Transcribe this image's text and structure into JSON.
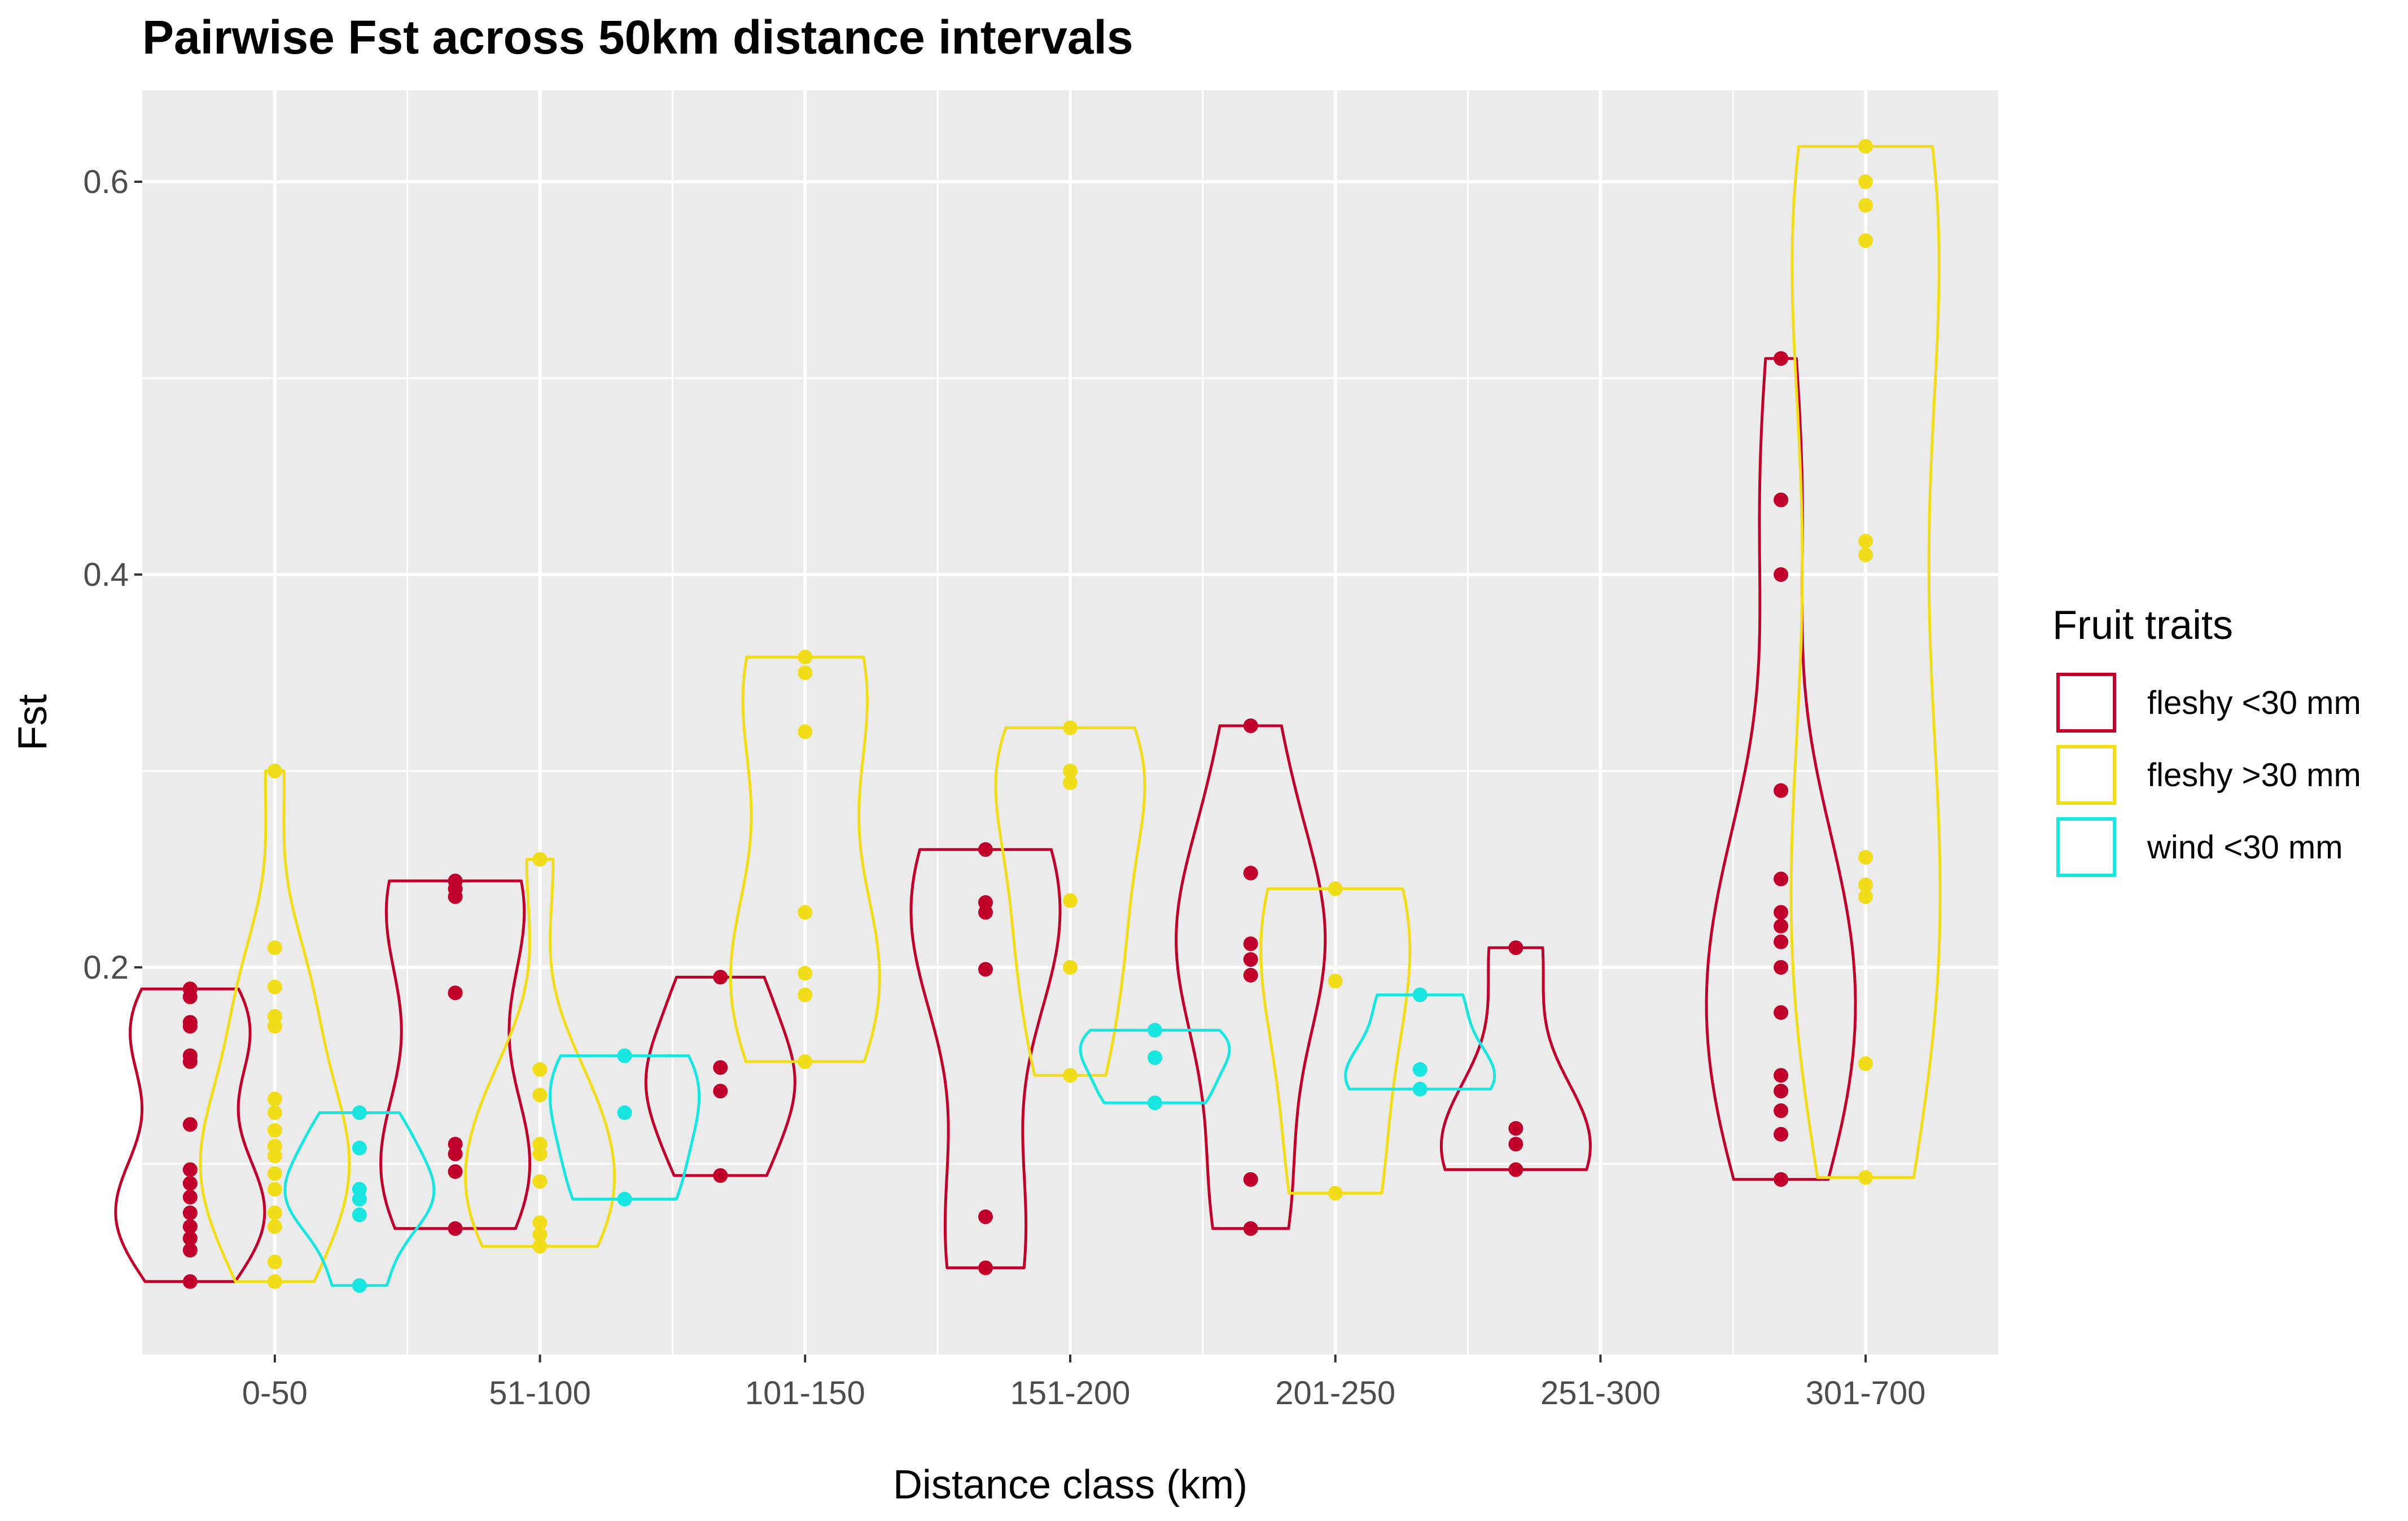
{
  "chart_data": {
    "type": "violin",
    "title": "Pairwise Fst across 50km distance intervals",
    "xlabel": "Distance class (km)",
    "ylabel": "Fst",
    "ylim": [
      0.0,
      0.64
    ],
    "yticks": [
      0.2,
      0.4,
      0.6
    ],
    "ytick_labels": [
      "0.2",
      "0.4",
      "0.6"
    ],
    "y_minor_gridlines": [
      0.1,
      0.3,
      0.5
    ],
    "categories": [
      "0-50",
      "51-100",
      "101-150",
      "151-200",
      "201-250",
      "251-300",
      "301-700"
    ],
    "grid": true,
    "legend": {
      "title": "Fruit traits",
      "position": "right",
      "entries": [
        {
          "name": "fleshy <30 mm",
          "color": "#C0002A"
        },
        {
          "name": "fleshy >30 mm",
          "color": "#F2DD1B"
        },
        {
          "name": "wind <30 mm",
          "color": "#19E6E0"
        }
      ]
    },
    "series": [
      {
        "name": "fleshy <30 mm",
        "color": "#C0002A",
        "groups": [
          {
            "category": "0-50",
            "points": [
              0.189,
              0.185,
              0.172,
              0.17,
              0.155,
              0.152,
              0.12,
              0.097,
              0.09,
              0.083,
              0.075,
              0.068,
              0.062,
              0.056,
              0.04
            ]
          },
          {
            "category": "51-100",
            "points": [
              0.244,
              0.24,
              0.236,
              0.187,
              0.11,
              0.105,
              0.096,
              0.067
            ]
          },
          {
            "category": "101-150",
            "points": [
              0.195,
              0.149,
              0.137,
              0.094
            ]
          },
          {
            "category": "151-200",
            "points": [
              0.26,
              0.233,
              0.228,
              0.199,
              0.073,
              0.047
            ]
          },
          {
            "category": "201-250",
            "points": [
              0.323,
              0.248,
              0.212,
              0.204,
              0.196,
              0.092,
              0.067
            ]
          },
          {
            "category": "251-300",
            "points": [
              0.21,
              0.118,
              0.11,
              0.097
            ]
          },
          {
            "category": "301-700",
            "points": [
              0.51,
              0.438,
              0.4,
              0.29,
              0.245,
              0.228,
              0.221,
              0.213,
              0.2,
              0.177,
              0.145,
              0.137,
              0.127,
              0.115,
              0.092
            ]
          }
        ]
      },
      {
        "name": "fleshy >30 mm",
        "color": "#F2DD1B",
        "groups": [
          {
            "category": "0-50",
            "points": [
              0.3,
              0.21,
              0.19,
              0.175,
              0.17,
              0.133,
              0.126,
              0.117,
              0.109,
              0.104,
              0.095,
              0.087,
              0.075,
              0.068,
              0.05,
              0.04
            ]
          },
          {
            "category": "51-100",
            "points": [
              0.255,
              0.148,
              0.135,
              0.11,
              0.105,
              0.091,
              0.07,
              0.064,
              0.058
            ]
          },
          {
            "category": "101-150",
            "points": [
              0.358,
              0.35,
              0.32,
              0.228,
              0.197,
              0.186,
              0.152
            ]
          },
          {
            "category": "151-200",
            "points": [
              0.322,
              0.3,
              0.294,
              0.234,
              0.2,
              0.145
            ]
          },
          {
            "category": "201-250",
            "points": [
              0.24,
              0.193,
              0.085
            ]
          },
          {
            "category": "301-700",
            "points": [
              0.618,
              0.6,
              0.588,
              0.57,
              0.417,
              0.41,
              0.256,
              0.242,
              0.236,
              0.151,
              0.093
            ]
          }
        ]
      },
      {
        "name": "wind <30 mm",
        "color": "#19E6E0",
        "groups": [
          {
            "category": "0-50",
            "points": [
              0.126,
              0.108,
              0.087,
              0.082,
              0.074,
              0.038
            ]
          },
          {
            "category": "51-100",
            "points": [
              0.155,
              0.126,
              0.082
            ]
          },
          {
            "category": "151-200",
            "points": [
              0.168,
              0.154,
              0.131
            ]
          },
          {
            "category": "201-250",
            "points": [
              0.186,
              0.148,
              0.138
            ]
          }
        ]
      }
    ]
  }
}
